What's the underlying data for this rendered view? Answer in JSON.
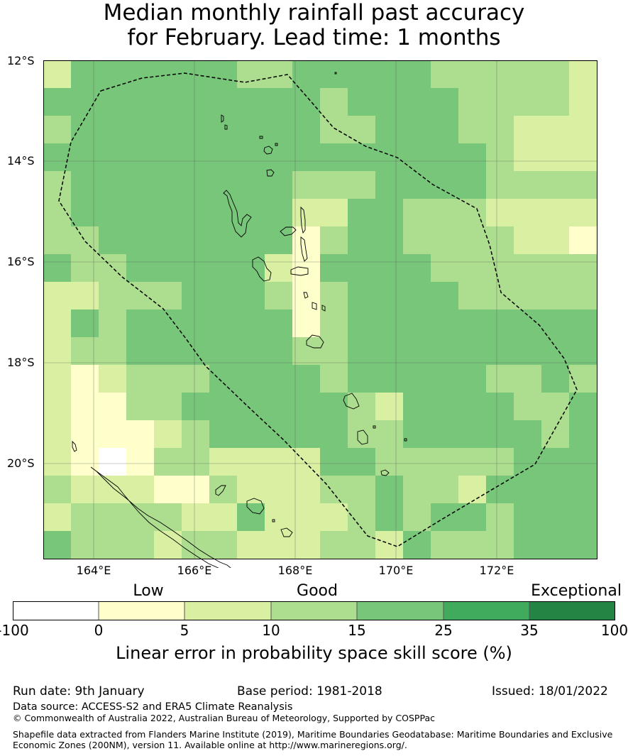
{
  "title": {
    "line1": "Median monthly rainfall past accuracy",
    "line2": "for February. Lead time: 1 months"
  },
  "map": {
    "lat_labels": [
      "12°S",
      "14°S",
      "16°S",
      "18°S",
      "20°S"
    ],
    "lon_labels": [
      "164°E",
      "166°E",
      "168°E",
      "170°E",
      "172°E"
    ],
    "colors": {
      "class0": "#ffffff",
      "class1": "#ffffcc",
      "class2": "#d9f0a3",
      "class3": "#addd8e",
      "class4": "#78c679",
      "class5": "#41ab5d",
      "class6": "#238443"
    },
    "grid_rows": [
      "24444443344444333332",
      "44444444443444433332",
      "34444444443344433222",
      "44444444444444443222",
      "34444444433344443333",
      "34444444422443332222",
      "33444444413443333221",
      "43344444214444333333",
      "22333444313444433333",
      "24344444413444444444",
      "23344444433444444444",
      "21233344443444443343",
      "21133444444324444334",
      "21112344444334444434",
      "21013322224433333444",
      "32221132223343324444",
      "23333224222343443444",
      "43332332223324333444",
      "42223332244344444444"
    ]
  },
  "legend": {
    "categories": [
      "Low",
      "Good",
      "Exceptional"
    ],
    "ticks": [
      "-100",
      "0",
      "5",
      "10",
      "15",
      "25",
      "35",
      "100"
    ],
    "label": "Linear error in probability space skill score (%)"
  },
  "footer": {
    "run_date": "Run date: 9th January",
    "base_period": "Base period: 1981-2018",
    "issued": "Issued: 18/01/2022",
    "data_source": "Data source: ACCESS-S2 and ERA5 Climate Reanalysis",
    "copyright": "© Commonwealth of Australia 2022, Australian Bureau of Meteorology, Supported by COSPPac",
    "shapefile_line1": "Shapefile data extracted from Flanders Marine Institute (2019), Maritime Boundaries Geodatabase: Maritime Boundaries and Exclusive",
    "shapefile_line2": "Economic Zones (200NM), version 11. Available online at http://www.marineregions.org/."
  }
}
